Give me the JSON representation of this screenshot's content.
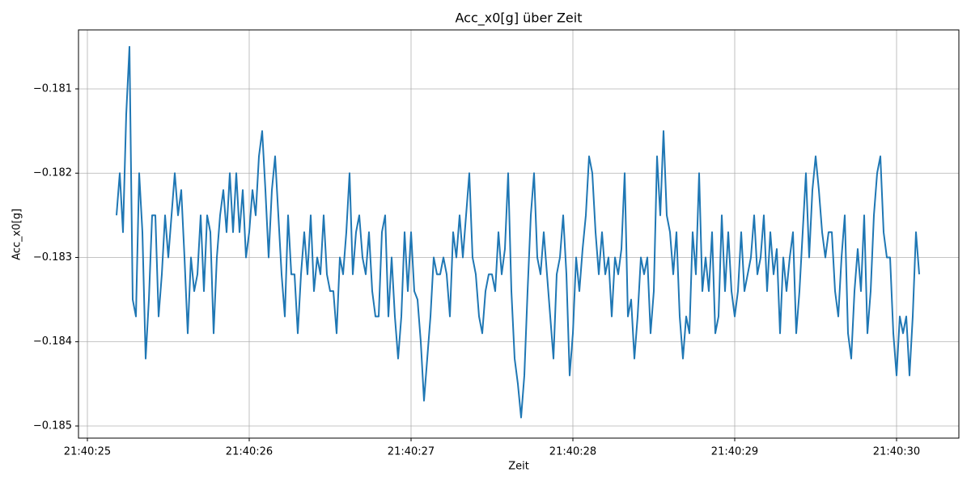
{
  "chart_data": {
    "type": "line",
    "title": "Acc_x0[g] über Zeit",
    "x_label": "Zeit",
    "y_label": "Acc_x0[g]",
    "x": [
      25.18,
      25.2,
      25.22,
      25.24,
      25.26,
      25.28,
      25.3,
      25.32,
      25.34,
      25.36,
      25.38,
      25.4,
      25.42,
      25.44,
      25.46,
      25.48,
      25.5,
      25.52,
      25.54,
      25.56,
      25.58,
      25.6,
      25.62,
      25.64,
      25.66,
      25.68,
      25.7,
      25.72,
      25.74,
      25.76,
      25.78,
      25.8,
      25.82,
      25.84,
      25.86,
      25.88,
      25.9,
      25.92,
      25.94,
      25.96,
      25.98,
      26.0,
      26.02,
      26.04,
      26.06,
      26.08,
      26.1,
      26.12,
      26.14,
      26.16,
      26.18,
      26.2,
      26.22,
      26.24,
      26.26,
      26.28,
      26.3,
      26.32,
      26.34,
      26.36,
      26.38,
      26.4,
      26.42,
      26.44,
      26.46,
      26.48,
      26.5,
      26.52,
      26.54,
      26.56,
      26.58,
      26.6,
      26.62,
      26.64,
      26.66,
      26.68,
      26.7,
      26.72,
      26.74,
      26.76,
      26.78,
      26.8,
      26.82,
      26.84,
      26.86,
      26.88,
      26.9,
      26.92,
      26.94,
      26.96,
      26.98,
      27.0,
      27.02,
      27.04,
      27.06,
      27.08,
      27.1,
      27.12,
      27.14,
      27.16,
      27.18,
      27.2,
      27.22,
      27.24,
      27.26,
      27.28,
      27.3,
      27.32,
      27.34,
      27.36,
      27.38,
      27.4,
      27.42,
      27.44,
      27.46,
      27.48,
      27.5,
      27.52,
      27.54,
      27.56,
      27.58,
      27.6,
      27.62,
      27.64,
      27.66,
      27.68,
      27.7,
      27.72,
      27.74,
      27.76,
      27.78,
      27.8,
      27.82,
      27.84,
      27.86,
      27.88,
      27.9,
      27.92,
      27.94,
      27.96,
      27.98,
      28.0,
      28.02,
      28.04,
      28.06,
      28.08,
      28.1,
      28.12,
      28.14,
      28.16,
      28.18,
      28.2,
      28.22,
      28.24,
      28.26,
      28.28,
      28.3,
      28.32,
      28.34,
      28.36,
      28.38,
      28.4,
      28.42,
      28.44,
      28.46,
      28.48,
      28.5,
      28.52,
      28.54,
      28.56,
      28.58,
      28.6,
      28.62,
      28.64,
      28.66,
      28.68,
      28.7,
      28.72,
      28.74,
      28.76,
      28.78,
      28.8,
      28.82,
      28.84,
      28.86,
      28.88,
      28.9,
      28.92,
      28.94,
      28.96,
      28.98,
      29.0,
      29.02,
      29.04,
      29.06,
      29.08,
      29.1,
      29.12,
      29.14,
      29.16,
      29.18,
      29.2,
      29.22,
      29.24,
      29.26,
      29.28,
      29.3,
      29.32,
      29.34,
      29.36,
      29.38,
      29.4,
      29.42,
      29.44,
      29.46,
      29.48,
      29.5,
      29.52,
      29.54,
      29.56,
      29.58,
      29.6,
      29.62,
      29.64,
      29.66,
      29.68,
      29.7,
      29.72,
      29.74,
      29.76,
      29.78,
      29.8,
      29.82,
      29.84,
      29.86,
      29.88,
      29.9,
      29.92,
      29.94,
      29.96,
      29.98,
      30.0,
      30.02,
      30.04,
      30.06,
      30.08,
      30.1,
      30.12,
      30.14
    ],
    "series": [
      {
        "name": "Acc_x0[g]",
        "color": "#1f77b4",
        "values": [
          -0.1825,
          -0.182,
          -0.1827,
          -0.1813,
          -0.1805,
          -0.1835,
          -0.1837,
          -0.182,
          -0.1827,
          -0.1842,
          -0.1835,
          -0.1825,
          -0.1825,
          -0.1837,
          -0.1832,
          -0.1825,
          -0.183,
          -0.1825,
          -0.182,
          -0.1825,
          -0.1822,
          -0.183,
          -0.1839,
          -0.183,
          -0.1834,
          -0.1832,
          -0.1825,
          -0.1834,
          -0.1825,
          -0.1827,
          -0.1839,
          -0.183,
          -0.1825,
          -0.1822,
          -0.1827,
          -0.182,
          -0.1827,
          -0.182,
          -0.1827,
          -0.1822,
          -0.183,
          -0.1827,
          -0.1822,
          -0.1825,
          -0.1818,
          -0.1815,
          -0.1822,
          -0.183,
          -0.1822,
          -0.1818,
          -0.1825,
          -0.1832,
          -0.1837,
          -0.1825,
          -0.1832,
          -0.1832,
          -0.1839,
          -0.1832,
          -0.1827,
          -0.1832,
          -0.1825,
          -0.1834,
          -0.183,
          -0.1832,
          -0.1825,
          -0.1832,
          -0.1834,
          -0.1834,
          -0.1839,
          -0.183,
          -0.1832,
          -0.1827,
          -0.182,
          -0.1832,
          -0.1827,
          -0.1825,
          -0.183,
          -0.1832,
          -0.1827,
          -0.1834,
          -0.1837,
          -0.1837,
          -0.1827,
          -0.1825,
          -0.1837,
          -0.183,
          -0.1837,
          -0.1842,
          -0.1837,
          -0.1827,
          -0.1834,
          -0.1827,
          -0.1834,
          -0.1835,
          -0.184,
          -0.1847,
          -0.1842,
          -0.1837,
          -0.183,
          -0.1832,
          -0.1832,
          -0.183,
          -0.1832,
          -0.1837,
          -0.1827,
          -0.183,
          -0.1825,
          -0.183,
          -0.1825,
          -0.182,
          -0.183,
          -0.1832,
          -0.1837,
          -0.1839,
          -0.1834,
          -0.1832,
          -0.1832,
          -0.1834,
          -0.1827,
          -0.1832,
          -0.1829,
          -0.182,
          -0.1834,
          -0.1842,
          -0.1845,
          -0.1849,
          -0.1844,
          -0.1834,
          -0.1825,
          -0.182,
          -0.183,
          -0.1832,
          -0.1827,
          -0.1832,
          -0.1837,
          -0.1842,
          -0.1832,
          -0.183,
          -0.1825,
          -0.1832,
          -0.1844,
          -0.1839,
          -0.183,
          -0.1834,
          -0.1829,
          -0.1825,
          -0.1818,
          -0.182,
          -0.1827,
          -0.1832,
          -0.1827,
          -0.1832,
          -0.183,
          -0.1837,
          -0.183,
          -0.1832,
          -0.1829,
          -0.182,
          -0.1837,
          -0.1835,
          -0.1842,
          -0.1837,
          -0.183,
          -0.1832,
          -0.183,
          -0.1839,
          -0.1834,
          -0.1818,
          -0.1825,
          -0.1815,
          -0.1825,
          -0.1827,
          -0.1832,
          -0.1827,
          -0.1837,
          -0.1842,
          -0.1837,
          -0.1839,
          -0.1827,
          -0.1832,
          -0.182,
          -0.1834,
          -0.183,
          -0.1834,
          -0.1827,
          -0.1839,
          -0.1837,
          -0.1825,
          -0.1834,
          -0.1827,
          -0.1834,
          -0.1837,
          -0.1834,
          -0.1827,
          -0.1834,
          -0.1832,
          -0.183,
          -0.1825,
          -0.1832,
          -0.183,
          -0.1825,
          -0.1834,
          -0.1827,
          -0.1832,
          -0.1829,
          -0.1839,
          -0.183,
          -0.1834,
          -0.183,
          -0.1827,
          -0.1839,
          -0.1834,
          -0.1827,
          -0.182,
          -0.183,
          -0.1822,
          -0.1818,
          -0.1822,
          -0.1827,
          -0.183,
          -0.1827,
          -0.1827,
          -0.1834,
          -0.1837,
          -0.183,
          -0.1825,
          -0.1839,
          -0.1842,
          -0.1834,
          -0.1829,
          -0.1834,
          -0.1825,
          -0.1839,
          -0.1834,
          -0.1825,
          -0.182,
          -0.1818,
          -0.1827,
          -0.183,
          -0.183,
          -0.1839,
          -0.1844,
          -0.1837,
          -0.1839,
          -0.1837,
          -0.1844,
          -0.1837,
          -0.1827,
          -0.1832
        ]
      }
    ],
    "xlim": [
      24.945,
      30.385
    ],
    "xticks": [
      {
        "value": 25,
        "label": "21:40:25"
      },
      {
        "value": 26,
        "label": "21:40:26"
      },
      {
        "value": 27,
        "label": "21:40:27"
      },
      {
        "value": 28,
        "label": "21:40:28"
      },
      {
        "value": 29,
        "label": "21:40:29"
      },
      {
        "value": 30,
        "label": "21:40:30"
      }
    ],
    "ylim": [
      -0.185144,
      -0.1803
    ],
    "yticks": [
      {
        "value": -0.181,
        "label": "−0.181"
      },
      {
        "value": -0.182,
        "label": "−0.182"
      },
      {
        "value": -0.183,
        "label": "−0.183"
      },
      {
        "value": -0.184,
        "label": "−0.184"
      },
      {
        "value": -0.185,
        "label": "−0.185"
      }
    ],
    "grid": true
  }
}
